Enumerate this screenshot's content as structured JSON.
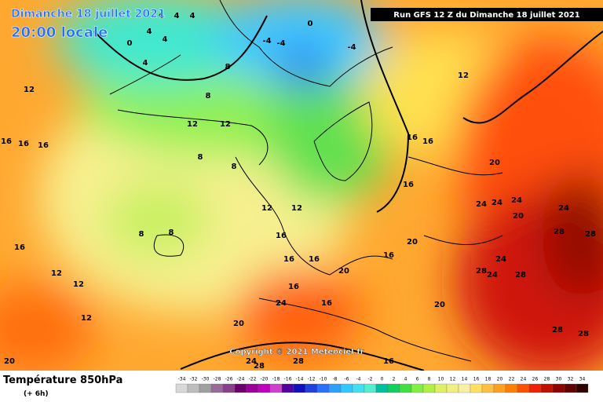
{
  "header": {
    "date": "Dimanche 18 juillet 2021",
    "time": "20:00 locale",
    "run": "Run GFS 12 Z du Dimanche 18 juillet 2021"
  },
  "copyright": "Copyright © 2021 Meteociel.fr",
  "footer": {
    "title": "Température 850hPa",
    "lead": "(+ 6h)"
  },
  "map_labels": [
    4,
    4,
    4,
    4,
    4,
    4,
    0,
    0,
    -4,
    -4,
    -4,
    8,
    8,
    8,
    8,
    8,
    8,
    12,
    12,
    12,
    12,
    12,
    12,
    12,
    12,
    12,
    16,
    16,
    16,
    16,
    16,
    16,
    16,
    16,
    16,
    16,
    16,
    16,
    16,
    16,
    20,
    20,
    20,
    20,
    20,
    20,
    20,
    24,
    24,
    24,
    24,
    24,
    24,
    24,
    24,
    28,
    28,
    28,
    28,
    28,
    28,
    28,
    28
  ],
  "scale": {
    "ticks": [
      -34,
      -32,
      -30,
      -28,
      -26,
      -24,
      -22,
      -20,
      -18,
      -16,
      -14,
      -12,
      -10,
      -8,
      -6,
      -4,
      -2,
      0,
      2,
      4,
      6,
      8,
      10,
      12,
      14,
      16,
      18,
      20,
      22,
      24,
      26,
      28,
      30,
      32,
      34
    ],
    "colors": [
      "#d8d8d8",
      "#bdbdbd",
      "#a0a0a0",
      "#9a6a9a",
      "#8a3f8a",
      "#6e006e",
      "#9b009b",
      "#c000c0",
      "#d040d0",
      "#5000a0",
      "#1010c0",
      "#2040e0",
      "#2a70ff",
      "#2aa0ff",
      "#30c8ff",
      "#40e0f0",
      "#50f0d0",
      "#00c0a0",
      "#10d060",
      "#40e040",
      "#80f040",
      "#b0f040",
      "#e0f060",
      "#f0f080",
      "#f8f0a0",
      "#ffe060",
      "#ffc040",
      "#ffa020",
      "#ff8000",
      "#ff5000",
      "#f02000",
      "#c01000",
      "#900000",
      "#600000",
      "#300000"
    ]
  }
}
